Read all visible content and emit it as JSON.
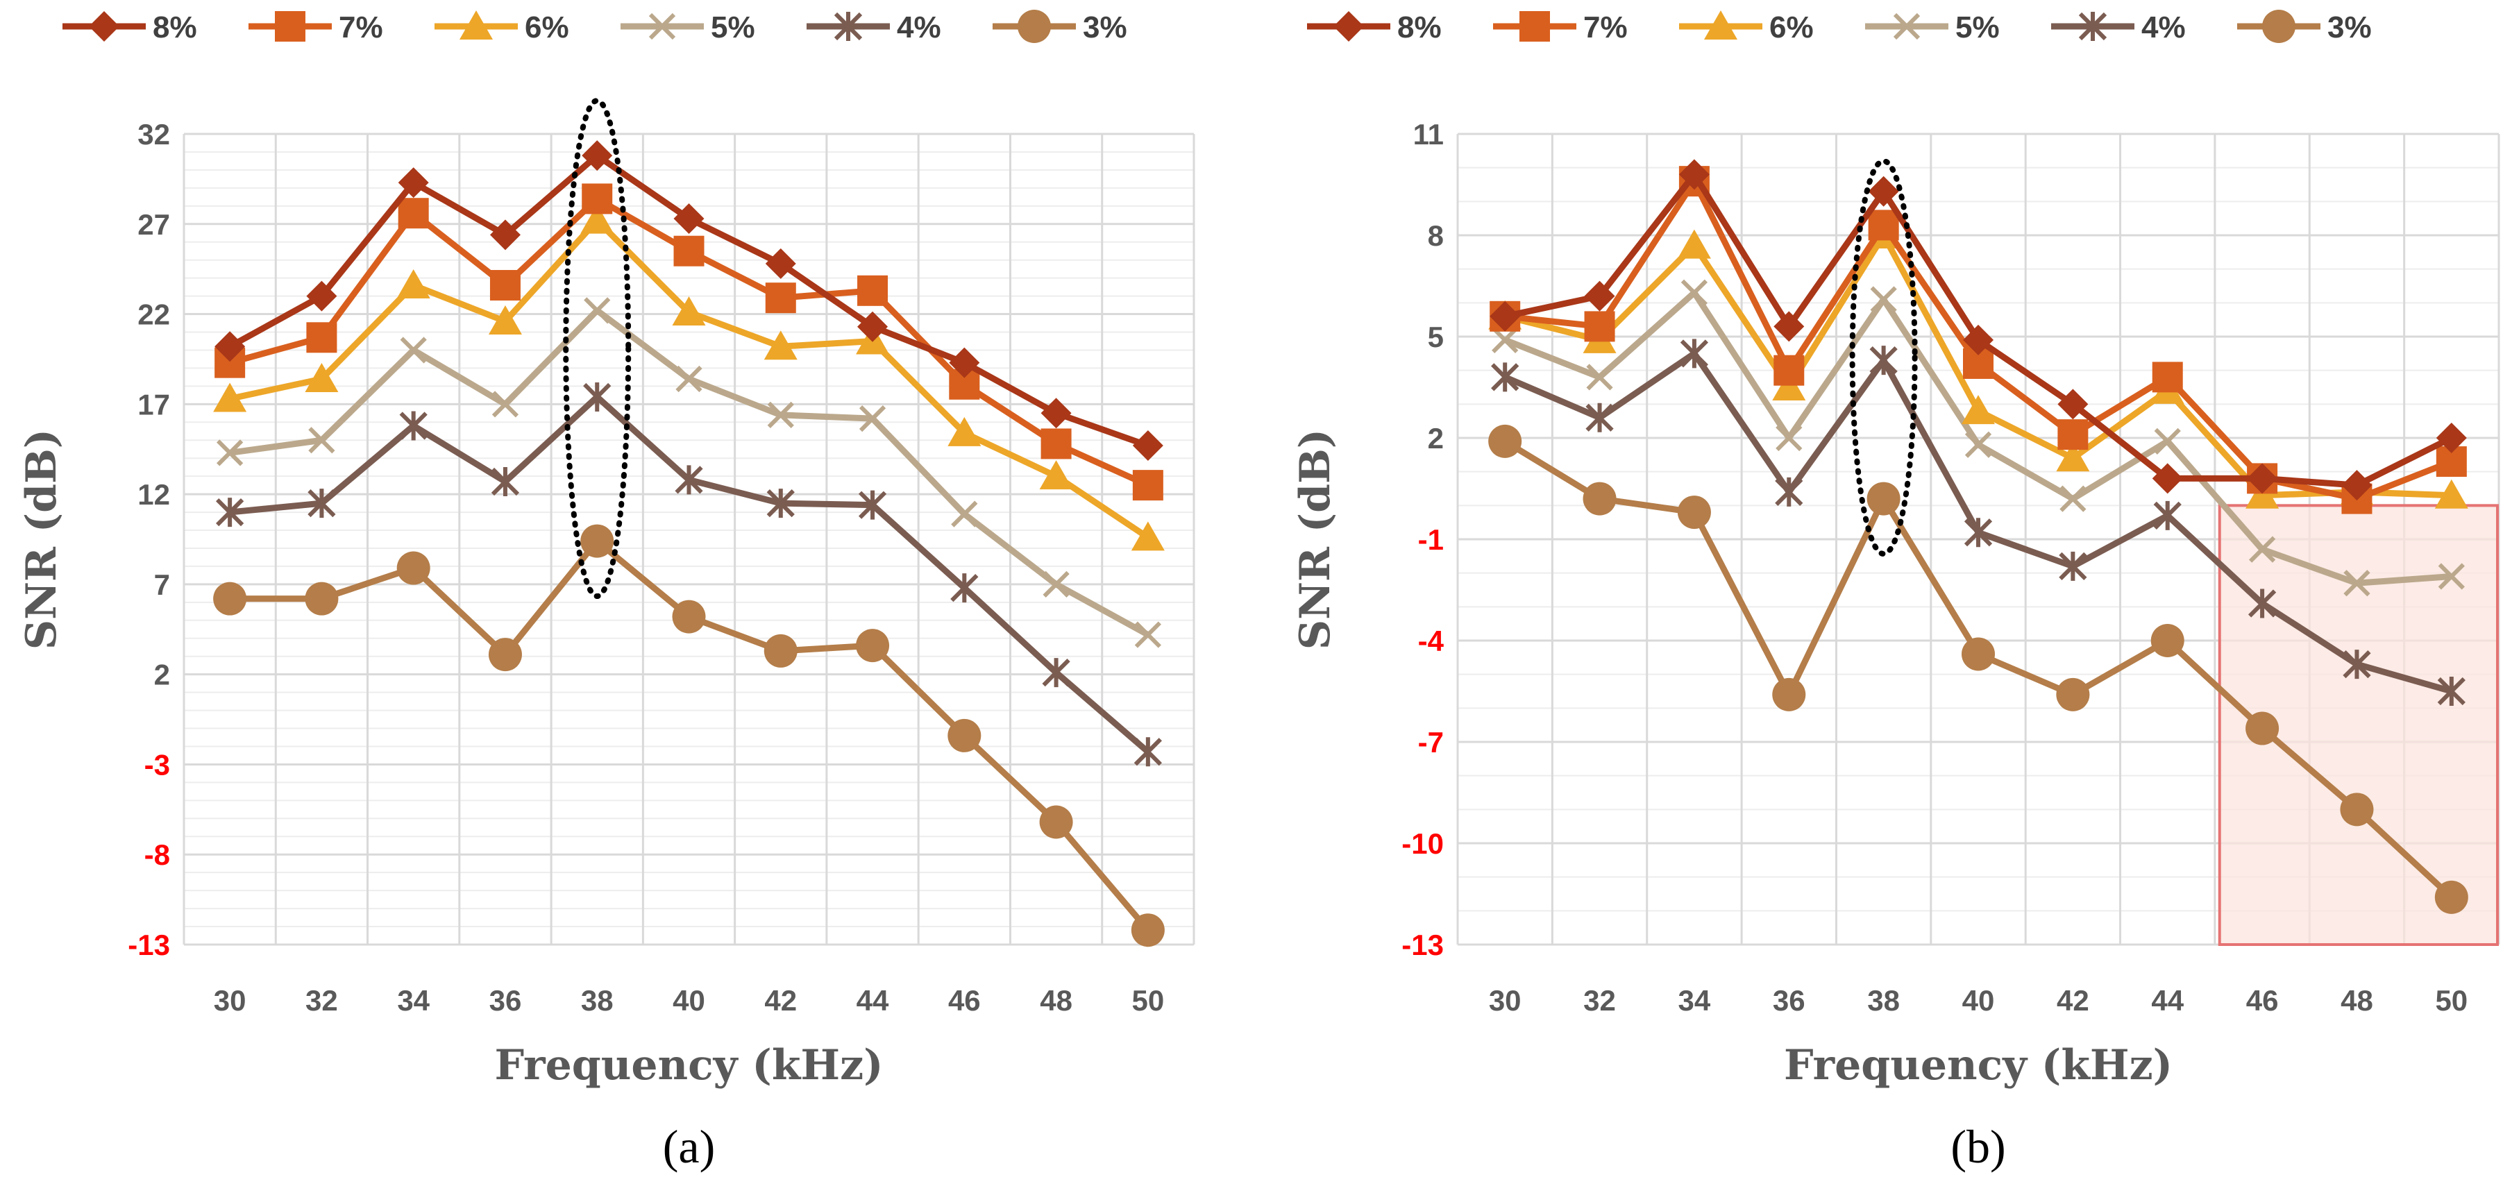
{
  "colors": {
    "8%": "#A93718",
    "7%": "#D95F1E",
    "6%": "#EDA628",
    "5%": "#BBA88C",
    "4%": "#7B5C51",
    "3%": "#B47D49",
    "negative_tick": "#FF0000",
    "tick": "#595959",
    "grid_major": "#D9D9D9",
    "grid_minor": "#EDEDED",
    "highlight_fill": "#FBE3DC",
    "highlight_stroke": "#E57373"
  },
  "chart_data": [
    {
      "type": "line",
      "panel_label": "(a)",
      "title": "",
      "xlabel": "Frequency (kHz)",
      "ylabel": "SNR (dB)",
      "categories": [
        "30",
        "32",
        "34",
        "36",
        "38",
        "40",
        "42",
        "44",
        "46",
        "48",
        "50"
      ],
      "ylim": [
        -13,
        32
      ],
      "yticks": [
        "32",
        "27",
        "22",
        "17",
        "12",
        "7",
        "2",
        "-3",
        "-8",
        "-13"
      ],
      "grid": true,
      "legend": "top",
      "annotations": [
        {
          "type": "dotted-ellipse",
          "category": "38"
        }
      ],
      "series": [
        {
          "name": "8%",
          "marker": "diamond",
          "values": [
            20.2,
            23.0,
            29.3,
            26.4,
            30.8,
            27.3,
            24.8,
            21.3,
            19.3,
            16.5,
            14.7
          ]
        },
        {
          "name": "7%",
          "marker": "square",
          "values": [
            19.3,
            20.7,
            27.6,
            23.6,
            28.4,
            25.5,
            22.9,
            23.3,
            18.1,
            14.8,
            12.5
          ]
        },
        {
          "name": "6%",
          "marker": "triangle",
          "values": [
            17.3,
            18.4,
            23.6,
            21.6,
            27.2,
            22.1,
            20.2,
            20.5,
            15.4,
            13.0,
            9.6
          ]
        },
        {
          "name": "5%",
          "marker": "x",
          "values": [
            14.3,
            15.0,
            20.0,
            17.0,
            22.2,
            18.4,
            16.4,
            16.2,
            10.9,
            7.0,
            4.2
          ]
        },
        {
          "name": "4%",
          "marker": "star",
          "values": [
            11.0,
            11.5,
            15.8,
            12.7,
            17.4,
            12.8,
            11.5,
            11.4,
            6.8,
            2.1,
            -2.3
          ]
        },
        {
          "name": "3%",
          "marker": "circle",
          "values": [
            6.2,
            6.2,
            7.9,
            3.1,
            9.4,
            5.2,
            3.3,
            3.6,
            -1.4,
            -6.2,
            -12.2
          ]
        }
      ]
    },
    {
      "type": "line",
      "panel_label": "(b)",
      "title": "",
      "xlabel": "Frequency (kHz)",
      "ylabel": "SNR (dB)",
      "categories": [
        "30",
        "32",
        "34",
        "36",
        "38",
        "40",
        "42",
        "44",
        "46",
        "48",
        "50"
      ],
      "ylim": [
        -13,
        11
      ],
      "yticks": [
        "11",
        "8",
        "5",
        "2",
        "-1",
        "-4",
        "-7",
        "-10",
        "-13"
      ],
      "grid": true,
      "legend": "top",
      "annotations": [
        {
          "type": "dotted-ellipse",
          "category": "38"
        },
        {
          "type": "highlight-box",
          "from_category": "46",
          "to_category": "50",
          "y_from": -13,
          "y_to": 0
        }
      ],
      "series": [
        {
          "name": "8%",
          "marker": "diamond",
          "values": [
            5.6,
            6.2,
            9.8,
            5.3,
            9.3,
            4.9,
            3.0,
            0.8,
            0.8,
            0.6,
            2.0
          ]
        },
        {
          "name": "7%",
          "marker": "square",
          "values": [
            5.6,
            5.3,
            9.6,
            4.0,
            8.3,
            4.2,
            2.1,
            3.8,
            0.8,
            0.2,
            1.3
          ]
        },
        {
          "name": "6%",
          "marker": "triangle",
          "values": [
            5.6,
            4.9,
            7.7,
            3.5,
            8.0,
            2.8,
            1.4,
            3.4,
            0.3,
            0.4,
            0.3
          ]
        },
        {
          "name": "5%",
          "marker": "x",
          "values": [
            4.9,
            3.8,
            6.3,
            2.0,
            6.1,
            1.8,
            0.2,
            1.9,
            -1.3,
            -2.3,
            -2.1
          ]
        },
        {
          "name": "4%",
          "marker": "star",
          "values": [
            3.8,
            2.6,
            4.5,
            0.4,
            4.3,
            -0.8,
            -1.8,
            -0.3,
            -2.9,
            -4.7,
            -5.5
          ]
        },
        {
          "name": "3%",
          "marker": "circle",
          "values": [
            1.9,
            0.2,
            -0.2,
            -5.6,
            0.2,
            -4.4,
            -5.6,
            -4.0,
            -6.6,
            -9.0,
            -11.6
          ]
        }
      ]
    }
  ]
}
